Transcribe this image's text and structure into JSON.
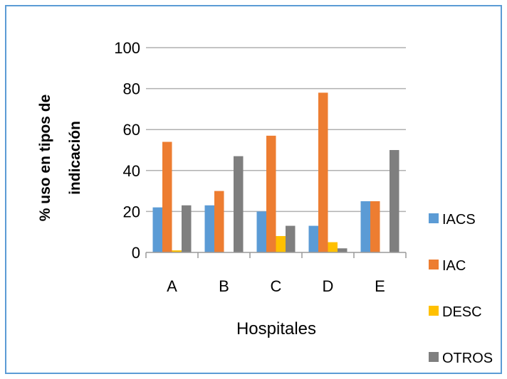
{
  "chart_data": {
    "type": "bar",
    "categories": [
      "A",
      "B",
      "C",
      "D",
      "E"
    ],
    "series": [
      {
        "name": "IACS",
        "color": "#5b9bd5",
        "values": [
          22,
          23,
          20,
          13,
          25
        ]
      },
      {
        "name": "IAC",
        "color": "#ed7d31",
        "values": [
          54,
          30,
          57,
          78,
          25
        ]
      },
      {
        "name": "DESC",
        "color": "#ffc000",
        "values": [
          1,
          0,
          8,
          5,
          0
        ]
      },
      {
        "name": "OTROS",
        "color": "#7f7f7f",
        "values": [
          23,
          47,
          13,
          2,
          50
        ]
      }
    ],
    "xlabel": "Hospitales",
    "ylabel": [
      "% uso en tipos de",
      "indicación"
    ],
    "ylim": [
      0,
      100
    ],
    "yticks": [
      0,
      20,
      40,
      60,
      80,
      100
    ],
    "grid": true,
    "legend_position": "right"
  }
}
